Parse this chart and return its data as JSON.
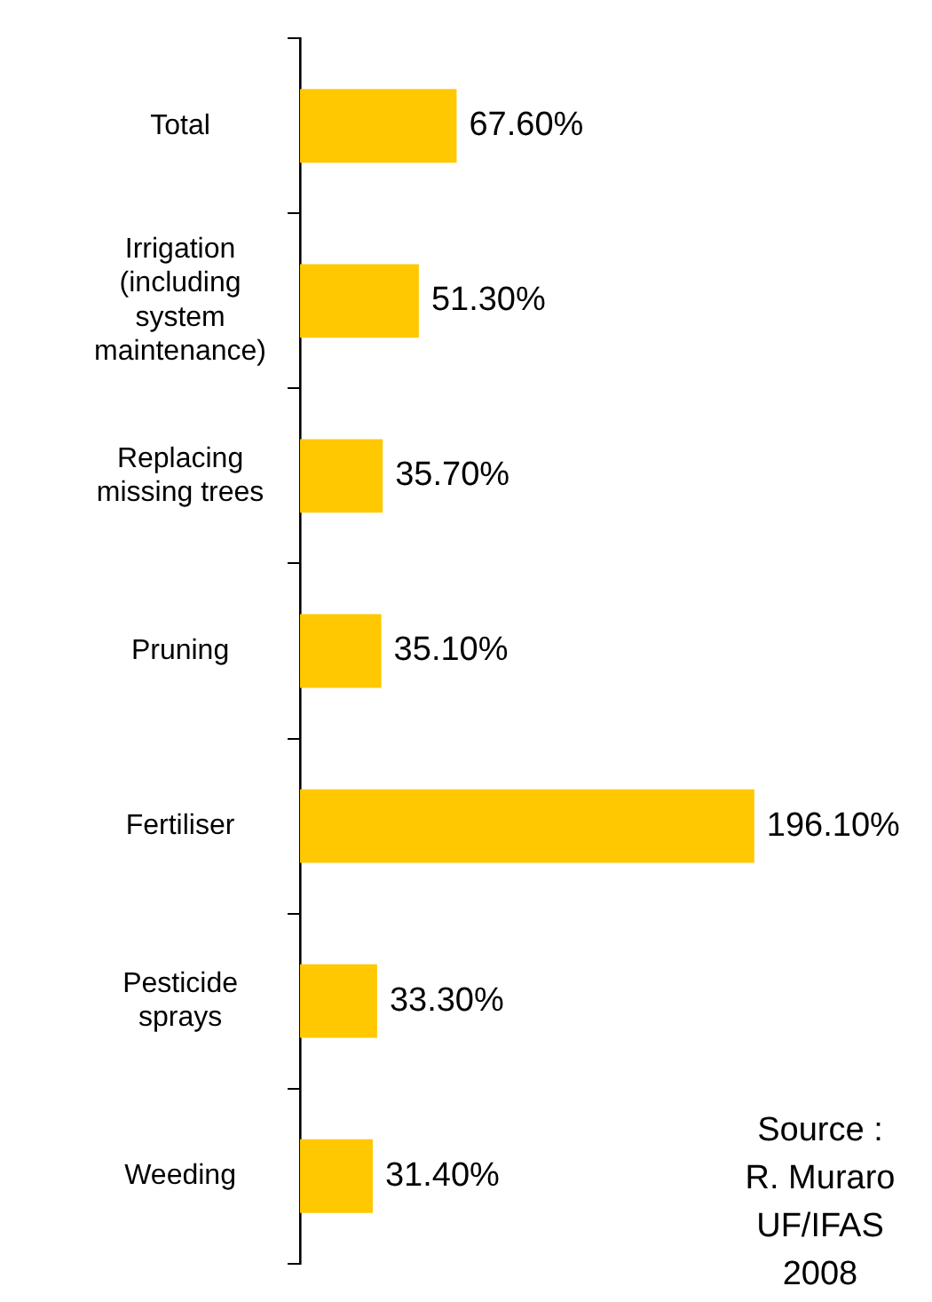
{
  "chart_data": {
    "type": "bar",
    "orientation": "horizontal",
    "categories": [
      "Total",
      "Irrigation (including system maintenance)",
      "Replacing missing trees",
      "Pruning",
      "Fertiliser",
      "Pesticide sprays",
      "Weeding"
    ],
    "values": [
      67.6,
      51.3,
      35.7,
      35.1,
      196.1,
      33.3,
      31.4
    ],
    "value_labels": [
      "67.60%",
      "51.30%",
      "35.70%",
      "35.10%",
      "196.10%",
      "33.30%",
      "31.40%"
    ],
    "color": "#ffc800",
    "tick_labels": "y",
    "annotations": [
      "Source : R. Muraro UF/IFAS 2008"
    ]
  }
}
